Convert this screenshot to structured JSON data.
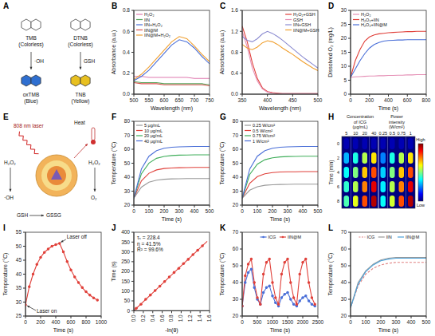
{
  "chart_data": [
    {
      "panel": "A",
      "type": "diagram",
      "reactants": [
        {
          "label": "TMB (Colorless)",
          "reagent": "·OH",
          "product": "oxTMB (Blue)",
          "color": "#2f6fd0"
        },
        {
          "label": "DTNB (Colorless)",
          "reagent": "GSH",
          "product": "TNB (Yellow)",
          "color": "#e8c020"
        }
      ]
    },
    {
      "panel": "B",
      "type": "line",
      "x_label": "Wavelength (nm)",
      "y_label": "Absorbance (a.u.)",
      "x": [
        500,
        525,
        550,
        575,
        600,
        625,
        650,
        675,
        700,
        725,
        750
      ],
      "xlim": [
        500,
        750
      ],
      "xticks": [
        500,
        550,
        600,
        650,
        700,
        750
      ],
      "ylim": [
        0,
        0.8
      ],
      "yticks": [
        {
          "value": 0,
          "label": "0.0"
        },
        0.2,
        0.4,
        0.6,
        0.8
      ],
      "legend": "upper left",
      "series": [
        {
          "name": "H₂O₂",
          "color": "#e07bb0",
          "values": [
            0.17,
            0.17,
            0.16,
            0.16,
            0.16,
            0.16,
            0.16,
            0.16,
            0.15,
            0.15,
            0.15
          ]
        },
        {
          "name": "IIN",
          "color": "#58a55c",
          "values": [
            0.12,
            0.11,
            0.11,
            0.11,
            0.1,
            0.1,
            0.1,
            0.1,
            0.1,
            0.1,
            0.09
          ]
        },
        {
          "name": "IIN+H₂O₂",
          "color": "#4a6fd8",
          "values": [
            0.13,
            0.17,
            0.23,
            0.31,
            0.39,
            0.47,
            0.52,
            0.5,
            0.44,
            0.36,
            0.29
          ]
        },
        {
          "name": "IIN@M",
          "color": "#d9534f",
          "values": [
            0.11,
            0.1,
            0.1,
            0.1,
            0.09,
            0.09,
            0.09,
            0.09,
            0.09,
            0.09,
            0.08
          ]
        },
        {
          "name": "IIN@M+H₂O₂",
          "color": "#f0a030",
          "values": [
            0.14,
            0.19,
            0.26,
            0.34,
            0.42,
            0.5,
            0.55,
            0.53,
            0.46,
            0.38,
            0.31
          ]
        }
      ]
    },
    {
      "panel": "C",
      "type": "line",
      "x_label": "Wavelength (nm)",
      "y_label": "Absorbance (a.u.)",
      "x": [
        350,
        360,
        370,
        380,
        390,
        400,
        410,
        420,
        430,
        440,
        450,
        460,
        470,
        480,
        490,
        500
      ],
      "xlim": [
        350,
        500
      ],
      "xticks": [
        350,
        400,
        450,
        500
      ],
      "ylim": [
        0,
        1.6
      ],
      "yticks": [
        {
          "value": 0,
          "label": "0.0"
        },
        0.4,
        0.8,
        1.2,
        1.6
      ],
      "legend": "upper right",
      "series": [
        {
          "name": "H₂O₂+GSH",
          "color": "#e0403a",
          "values": [
            1.3,
            1.0,
            0.6,
            0.3,
            0.12,
            0.05,
            0.03,
            0.02,
            0.01,
            0.01,
            0.01,
            0.01,
            0.01,
            0.01,
            0.01,
            0.01
          ]
        },
        {
          "name": "GSH",
          "color": "#e58fb5",
          "values": [
            1.2,
            0.9,
            0.5,
            0.25,
            0.1,
            0.04,
            0.02,
            0.01,
            0.01,
            0.01,
            0.01,
            0.01,
            0.01,
            0.01,
            0.01,
            0.01
          ]
        },
        {
          "name": "IIN+GSH",
          "color": "#8a8ad0",
          "values": [
            1.1,
            1.03,
            1.0,
            1.06,
            1.15,
            1.2,
            1.16,
            1.1,
            1.03,
            0.95,
            0.87,
            0.79,
            0.71,
            0.64,
            0.57,
            0.5
          ]
        },
        {
          "name": "IIN@M+GSH",
          "color": "#f0a030",
          "values": [
            0.95,
            0.88,
            0.85,
            0.9,
            0.98,
            1.02,
            1.0,
            0.95,
            0.88,
            0.82,
            0.76,
            0.69,
            0.62,
            0.56,
            0.5,
            0.45
          ]
        }
      ]
    },
    {
      "panel": "D",
      "type": "line",
      "x_label": "Time (s)",
      "y_label": "Dissolved O₂ (mg/L)",
      "x": [
        0,
        50,
        100,
        150,
        200,
        250,
        300,
        350,
        400,
        450,
        500,
        550,
        600,
        650,
        700,
        750,
        800
      ],
      "xlim": [
        0,
        800
      ],
      "xticks": [
        0,
        200,
        400,
        600,
        800
      ],
      "ylim": [
        0,
        30
      ],
      "yticks": [
        0,
        5,
        10,
        15,
        20,
        25,
        30
      ],
      "legend": "upper left",
      "series": [
        {
          "name": "H₂O₂",
          "color": "#e58fb5",
          "values": [
            6,
            6.2,
            6.3,
            6.4,
            6.5,
            6.5,
            6.6,
            6.6,
            6.7,
            6.7,
            6.8,
            6.8,
            6.9,
            6.9,
            7,
            7,
            7
          ]
        },
        {
          "name": "H₂O₂+IIN",
          "color": "#e0403a",
          "values": [
            6,
            12,
            16,
            19,
            20.5,
            21.2,
            21.6,
            21.8,
            22,
            22.1,
            22.2,
            22.3,
            22.4,
            22.4,
            22.5,
            22.5,
            22.5
          ]
        },
        {
          "name": "H₂O₂+IIN@M",
          "color": "#4a6fd8",
          "values": [
            6,
            9,
            12,
            14.5,
            16.5,
            17.8,
            18.5,
            19,
            19.2,
            19.3,
            19.4,
            19.4,
            19.5,
            19.5,
            19.5,
            19.5,
            19.5
          ]
        }
      ]
    },
    {
      "panel": "E",
      "type": "diagram",
      "laser": "808 nm laser",
      "heat": "Heat",
      "reactions": [
        {
          "from": "H₂O₂",
          "to": "·OH"
        },
        {
          "from": "GSH",
          "to": "GSSG"
        },
        {
          "from": "H₂O₂",
          "to": "O₂"
        }
      ]
    },
    {
      "panel": "F",
      "type": "line",
      "x_label": "Time (s)",
      "y_label": "Temperature (°C)",
      "x": [
        0,
        50,
        100,
        150,
        200,
        250,
        300,
        350,
        400,
        450,
        500
      ],
      "xlim": [
        0,
        500
      ],
      "xticks": [
        0,
        100,
        200,
        300,
        400,
        500
      ],
      "ylim": [
        20,
        80
      ],
      "yticks": [
        20,
        30,
        40,
        50,
        60,
        70,
        80
      ],
      "legend": "upper left",
      "series": [
        {
          "name": "5 μg/mL",
          "color": "#999999",
          "values": [
            25,
            32.9,
            36.4,
            37.9,
            38.5,
            38.8,
            38.9,
            39,
            39,
            39,
            39
          ]
        },
        {
          "name": "10 μg/mL",
          "color": "#e0403a",
          "values": [
            25,
            37.4,
            42.8,
            45.2,
            46.2,
            46.6,
            46.8,
            46.9,
            47,
            47,
            47
          ]
        },
        {
          "name": "20 μg/mL",
          "color": "#3fae5a",
          "values": [
            25,
            42.5,
            50.1,
            53.5,
            54.9,
            55.5,
            55.8,
            55.9,
            56,
            56,
            56
          ]
        },
        {
          "name": "40 μg/mL",
          "color": "#4a6fd8",
          "values": [
            25,
            45.9,
            55,
            59,
            60.7,
            61.4,
            61.7,
            61.9,
            62,
            62,
            62
          ]
        }
      ]
    },
    {
      "panel": "G",
      "type": "line",
      "x_label": "Time (s)",
      "y_label": "Temperature (°C)",
      "x": [
        0,
        50,
        100,
        150,
        200,
        250,
        300,
        350,
        400,
        450,
        500
      ],
      "xlim": [
        0,
        500
      ],
      "xticks": [
        0,
        100,
        200,
        300,
        400,
        500
      ],
      "ylim": [
        20,
        80
      ],
      "yticks": [
        20,
        30,
        40,
        50,
        60,
        70,
        80
      ],
      "legend": "upper left",
      "series": [
        {
          "name": "0.25 W/cm²",
          "color": "#999999",
          "values": [
            25,
            30.7,
            33.1,
            34.2,
            34.6,
            34.8,
            34.9,
            35,
            35,
            35,
            35
          ]
        },
        {
          "name": "0.5 W/cm²",
          "color": "#e0403a",
          "values": [
            25,
            35.7,
            40.4,
            42.4,
            43.3,
            43.7,
            43.9,
            43.9,
            44,
            44,
            44
          ]
        },
        {
          "name": "0.75 W/cm²",
          "color": "#3fae5a",
          "values": [
            25,
            42,
            49.3,
            52.5,
            53.9,
            54.5,
            54.8,
            54.9,
            55,
            55,
            55
          ]
        },
        {
          "name": "1 W/cm²",
          "color": "#4a6fd8",
          "values": [
            25,
            45.9,
            55,
            59,
            60.7,
            61.4,
            61.7,
            61.9,
            62,
            62,
            62
          ]
        }
      ]
    },
    {
      "panel": "H",
      "type": "heatmap",
      "y_label": "Time (min)",
      "rows": [
        0,
        2,
        4,
        6,
        8
      ],
      "groups": [
        {
          "label": "Concentration of ICG (μg/mL)",
          "columns": [
            5,
            10,
            20,
            40
          ]
        },
        {
          "label": "Power intensity (W/cm²)",
          "columns": [
            0.25,
            0.5,
            0.75,
            1
          ]
        }
      ],
      "cells": [
        [
          0.05,
          0.05,
          0.05,
          0.05,
          0.05,
          0.05,
          0.05,
          0.05
        ],
        [
          0.3,
          0.4,
          0.55,
          0.65,
          0.25,
          0.4,
          0.55,
          0.65
        ],
        [
          0.38,
          0.5,
          0.68,
          0.8,
          0.33,
          0.5,
          0.68,
          0.8
        ],
        [
          0.42,
          0.55,
          0.75,
          0.9,
          0.36,
          0.55,
          0.75,
          0.9
        ],
        [
          0.45,
          0.6,
          0.8,
          0.95,
          0.38,
          0.58,
          0.8,
          0.95
        ]
      ],
      "colorbar": {
        "range": [
          0,
          1
        ],
        "low": "Low",
        "high": "High"
      }
    },
    {
      "panel": "I",
      "type": "line",
      "x_label": "Time (s)",
      "y_label": "Temperature (°C)",
      "x": [
        0,
        50,
        100,
        150,
        200,
        250,
        300,
        350,
        400,
        450,
        500,
        550,
        600,
        650,
        700,
        750,
        800,
        850,
        900,
        950
      ],
      "xlim": [
        0,
        1000
      ],
      "xticks": [
        0,
        200,
        400,
        600,
        800,
        1000
      ],
      "ylim": [
        25,
        55
      ],
      "yticks": [
        25,
        30,
        35,
        40,
        45,
        50,
        55
      ],
      "annotations": [
        "Laser on",
        "Laser off"
      ],
      "series": [
        {
          "color": "#e0403a",
          "marker": "circle",
          "values": [
            29,
            35.5,
            40,
            43.5,
            46,
            47.8,
            49,
            50,
            50.6,
            51,
            48,
            44.5,
            41.5,
            39,
            37,
            35.2,
            33.7,
            32.5,
            31.5,
            30.7
          ]
        }
      ]
    },
    {
      "panel": "J",
      "type": "scatter",
      "x_label": "-ln(θ)",
      "y_label": "Time (s)",
      "x": [
        0,
        0.05,
        0.15,
        0.25,
        0.35,
        0.45,
        0.55,
        0.65,
        0.75,
        0.85,
        0.95,
        1.05,
        1.15,
        1.25,
        1.35,
        1.45,
        1.55
      ],
      "xlim": [
        0,
        1.6
      ],
      "xticks": [
        {
          "value": 0,
          "label": "0.0"
        },
        0.2,
        0.4,
        0.6,
        0.8,
        {
          "value": 1,
          "label": "1.0"
        },
        1.2,
        1.4,
        1.6
      ],
      "ylim": [
        0,
        400
      ],
      "yticks": [
        0,
        50,
        100,
        150,
        200,
        250,
        300,
        350,
        400
      ],
      "annotations": [
        "τₛ = 228.4",
        "η = 41.5%",
        "R² = 99.6%"
      ],
      "series": [
        {
          "type": "scatter",
          "color": "#e0403a",
          "marker": "circle",
          "values": [
            null,
            12,
            33,
            58,
            80,
            103,
            125,
            149,
            172,
            195,
            216,
            240,
            262,
            286,
            308,
            331,
            null
          ]
        },
        {
          "type": "line",
          "color": "#e0403a",
          "values": [
            0,
            11.4,
            34.3,
            57.1,
            79.9,
            102.8,
            125.6,
            148.5,
            171.3,
            194.1,
            217,
            239.8,
            262.7,
            285.5,
            308.3,
            331.2,
            354
          ]
        }
      ]
    },
    {
      "panel": "K",
      "type": "line",
      "x_label": "Time (s)",
      "y_label": "Temperature (°C)",
      "x": [
        0,
        100,
        200,
        300,
        400,
        500,
        600,
        700,
        800,
        900,
        1000,
        1100,
        1200,
        1300,
        1400,
        1500,
        1600,
        1700,
        1800,
        1900,
        2000,
        2100,
        2200,
        2300,
        2400
      ],
      "xlim": [
        0,
        2500
      ],
      "xticks": [
        0,
        500,
        1000,
        1500,
        2000,
        2500
      ],
      "ylim": [
        20,
        70
      ],
      "yticks": [
        20,
        30,
        40,
        50,
        60,
        70
      ],
      "legend": "upper center",
      "series": [
        {
          "name": "ICG",
          "color": "#4a6fd8",
          "marker": "circle",
          "values": [
            26,
            40,
            46,
            48,
            37,
            30,
            27,
            34,
            37,
            38,
            32,
            28,
            26,
            31,
            33,
            34,
            30,
            27,
            26,
            29,
            31,
            32,
            29,
            27,
            26
          ]
        },
        {
          "name": "IIN@M",
          "color": "#e0403a",
          "marker": "circle",
          "values": [
            26,
            44,
            51,
            54,
            40,
            31,
            27,
            45,
            52,
            54,
            40,
            31,
            27,
            45,
            52,
            54,
            40,
            31,
            27,
            45,
            52,
            54,
            40,
            31,
            27
          ]
        }
      ]
    },
    {
      "panel": "L",
      "type": "line",
      "x_label": "Time (s)",
      "y_label": "Temperature (°C)",
      "x": [
        0,
        50,
        100,
        150,
        200,
        250,
        300,
        350,
        400,
        450,
        500
      ],
      "xlim": [
        0,
        500
      ],
      "xticks": [
        0,
        100,
        200,
        300,
        400,
        500
      ],
      "ylim": [
        20,
        70
      ],
      "yticks": [
        20,
        30,
        40,
        50,
        60,
        70
      ],
      "legend": "upper center",
      "series": [
        {
          "name": "ICG",
          "color": "#e08080",
          "line_style": "dashed",
          "values": [
            25,
            38,
            45,
            48.5,
            50.5,
            51.5,
            52,
            52,
            52,
            52,
            52
          ]
        },
        {
          "name": "IIN",
          "color": "#999999",
          "values": [
            25,
            40,
            47,
            51,
            53.5,
            54.5,
            55,
            55,
            55,
            55,
            55
          ]
        },
        {
          "name": "IIN@M",
          "color": "#4aa0d8",
          "values": [
            25,
            39,
            46.5,
            50.5,
            53,
            54,
            54.5,
            54.5,
            54.5,
            54.5,
            54.5
          ]
        }
      ]
    }
  ]
}
